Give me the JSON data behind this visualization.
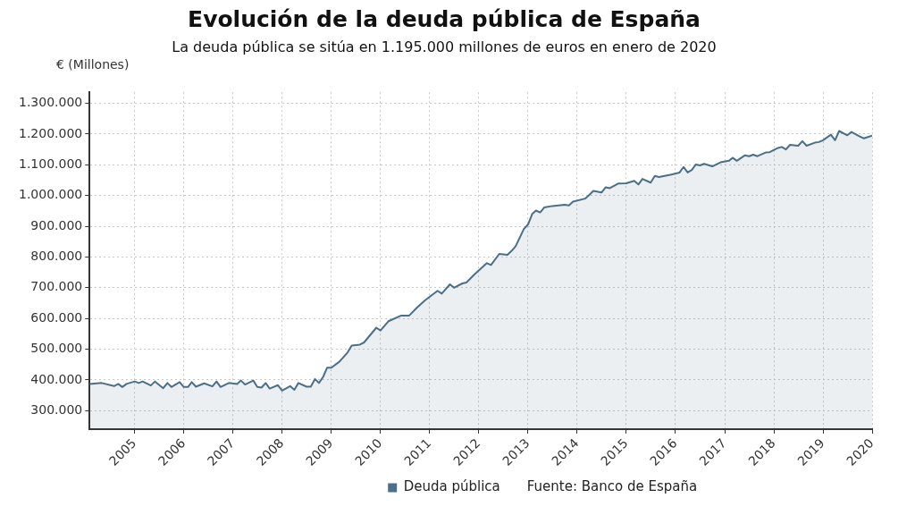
{
  "chart_data": {
    "type": "area",
    "title": "Evolución de la deuda pública de España",
    "subtitle": "La deuda pública se sitúa en 1.195.000 millones de euros en enero de 2020",
    "ylabel": "€ (Millones)",
    "x": [
      "2004-02",
      "2004-05",
      "2004-08",
      "2004-09",
      "2004-10",
      "2004-11",
      "2005-01",
      "2005-02",
      "2005-03",
      "2005-05",
      "2005-06",
      "2005-08",
      "2005-09",
      "2005-10",
      "2005-12",
      "2006-01",
      "2006-02",
      "2006-03",
      "2006-04",
      "2006-06",
      "2006-08",
      "2006-09",
      "2006-10",
      "2006-12",
      "2007-02",
      "2007-03",
      "2007-04",
      "2007-06",
      "2007-07",
      "2007-08",
      "2007-09",
      "2007-10",
      "2007-12",
      "2008-01",
      "2008-03",
      "2008-04",
      "2008-05",
      "2008-07",
      "2008-08",
      "2008-09",
      "2008-10",
      "2008-11",
      "2008-12",
      "2009-01",
      "2009-03",
      "2009-05",
      "2009-06",
      "2009-08",
      "2009-09",
      "2009-12",
      "2010-01",
      "2010-03",
      "2010-06",
      "2010-08",
      "2010-10",
      "2010-12",
      "2011-03",
      "2011-04",
      "2011-06",
      "2011-07",
      "2011-09",
      "2011-10",
      "2011-12",
      "2012-03",
      "2012-04",
      "2012-06",
      "2012-08",
      "2012-09",
      "2012-10",
      "2012-12",
      "2013-01",
      "2013-02",
      "2013-03",
      "2013-04",
      "2013-05",
      "2013-07",
      "2013-10",
      "2013-11",
      "2013-12",
      "2014-03",
      "2014-04",
      "2014-05",
      "2014-07",
      "2014-08",
      "2014-09",
      "2014-11",
      "2015-01",
      "2015-03",
      "2015-04",
      "2015-05",
      "2015-07",
      "2015-08",
      "2015-09",
      "2015-12",
      "2016-02",
      "2016-03",
      "2016-04",
      "2016-05",
      "2016-06",
      "2016-07",
      "2016-08",
      "2016-10",
      "2016-12",
      "2017-02",
      "2017-03",
      "2017-04",
      "2017-06",
      "2017-07",
      "2017-08",
      "2017-09",
      "2017-11",
      "2017-12",
      "2018-02",
      "2018-03",
      "2018-04",
      "2018-05",
      "2018-07",
      "2018-08",
      "2018-09",
      "2018-11",
      "2018-12",
      "2019-01",
      "2019-03",
      "2019-04",
      "2019-05",
      "2019-07",
      "2019-08",
      "2019-10",
      "2019-11",
      "2020-01"
    ],
    "series": [
      {
        "name": "Deuda pública",
        "color": "#4a6f8a",
        "values": [
          387000,
          390000,
          380000,
          387000,
          377000,
          387000,
          395000,
          390000,
          395000,
          382000,
          395000,
          373000,
          390000,
          377000,
          393000,
          377000,
          377000,
          393000,
          378000,
          389000,
          379000,
          395000,
          377000,
          390000,
          387000,
          398000,
          385000,
          398000,
          377000,
          375000,
          390000,
          372000,
          383000,
          365000,
          380000,
          368000,
          390000,
          378000,
          378000,
          403000,
          390000,
          410000,
          440000,
          440000,
          459000,
          489000,
          512000,
          515000,
          522000,
          570000,
          561000,
          591000,
          609000,
          609000,
          636000,
          660000,
          690000,
          681000,
          711000,
          700000,
          714000,
          717000,
          744000,
          780000,
          774000,
          810000,
          807000,
          820000,
          835000,
          891000,
          906000,
          940000,
          951000,
          945000,
          961000,
          966000,
          970000,
          968000,
          980000,
          990000,
          1002000,
          1015000,
          1010000,
          1027000,
          1024000,
          1039000,
          1040000,
          1048000,
          1036000,
          1054000,
          1042000,
          1064000,
          1060000,
          1068000,
          1075000,
          1093000,
          1075000,
          1083000,
          1101000,
          1098000,
          1103000,
          1095000,
          1108000,
          1113000,
          1123000,
          1113000,
          1131000,
          1128000,
          1133000,
          1128000,
          1140000,
          1141000,
          1155000,
          1158000,
          1150000,
          1165000,
          1162000,
          1177000,
          1162000,
          1172000,
          1174000,
          1180000,
          1198000,
          1180000,
          1210000,
          1196000,
          1207000,
          1192000,
          1186000,
          1195000
        ]
      }
    ],
    "xlim": [
      "2004-02",
      "2020-01"
    ],
    "xticks": [
      "2005",
      "2006",
      "2007",
      "2008",
      "2009",
      "2010",
      "2011",
      "2012",
      "2013",
      "2014",
      "2015",
      "2016",
      "2017",
      "2018",
      "2019",
      "2020"
    ],
    "ylim": [
      240000,
      1336000
    ],
    "yticks": [
      {
        "value": 300000,
        "label": "300.000"
      },
      {
        "value": 400000,
        "label": "400.000"
      },
      {
        "value": 500000,
        "label": "500.000"
      },
      {
        "value": 600000,
        "label": "600.000"
      },
      {
        "value": 700000,
        "label": "700.000"
      },
      {
        "value": 800000,
        "label": "800.000"
      },
      {
        "value": 900000,
        "label": "900.000"
      },
      {
        "value": 1000000,
        "label": "1.000.000"
      },
      {
        "value": 1100000,
        "label": "1.100.000"
      },
      {
        "value": 1200000,
        "label": "1.200.000"
      },
      {
        "value": 1300000,
        "label": "1.300.000"
      }
    ],
    "grid": true,
    "legend": "bottom",
    "marker": "none",
    "line_style": "solid",
    "annotations": [
      "Fuente: Banco de España"
    ]
  }
}
